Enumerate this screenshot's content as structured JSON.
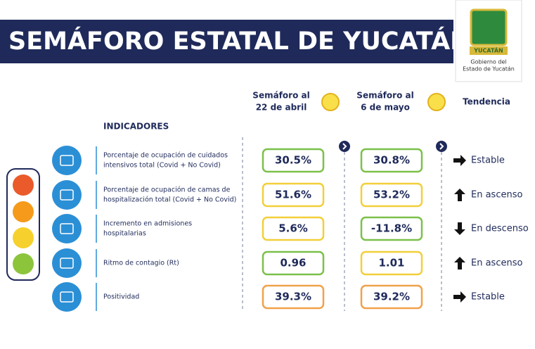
{
  "header": {
    "title": "SEMÁFORO ESTATAL DE YUCATÁN"
  },
  "logo": {
    "name": "YUCATÁN",
    "line1": "Gobierno del",
    "line2": "Estado de Yucatán"
  },
  "columns": {
    "first_line1": "Semáforo al",
    "first_line2": "22 de abril",
    "second_line1": "Semáforo al",
    "second_line2": "6 de mayo",
    "trend": "Tendencia"
  },
  "section": "INDICADORES",
  "rows": [
    {
      "label_line1": "Porcentaje de ocupación de cuidados",
      "label_line2": "intensivos total (Covid + No Covid)",
      "value1": "30.5%",
      "value2": "30.8%",
      "trend": "Estable"
    },
    {
      "label_line1": "Porcentaje de ocupación de camas de",
      "label_line2": "hospitalización total (Covid + No Covid)",
      "value1": "51.6%",
      "value2": "53.2%",
      "trend": "En ascenso"
    },
    {
      "label_line1": "Incremento en admisiones",
      "label_line2": "hospitalarias",
      "value1": "5.6%",
      "value2": "-11.8%",
      "trend": "En descenso"
    },
    {
      "label_line1": "Ritmo de contagio (Rt)",
      "label_line2": "",
      "value1": "0.96",
      "value2": "1.01",
      "trend": "En ascenso"
    },
    {
      "label_line1": "Positividad",
      "label_line2": "",
      "value1": "39.3%",
      "value2": "39.2%",
      "trend": "Estable"
    }
  ]
}
